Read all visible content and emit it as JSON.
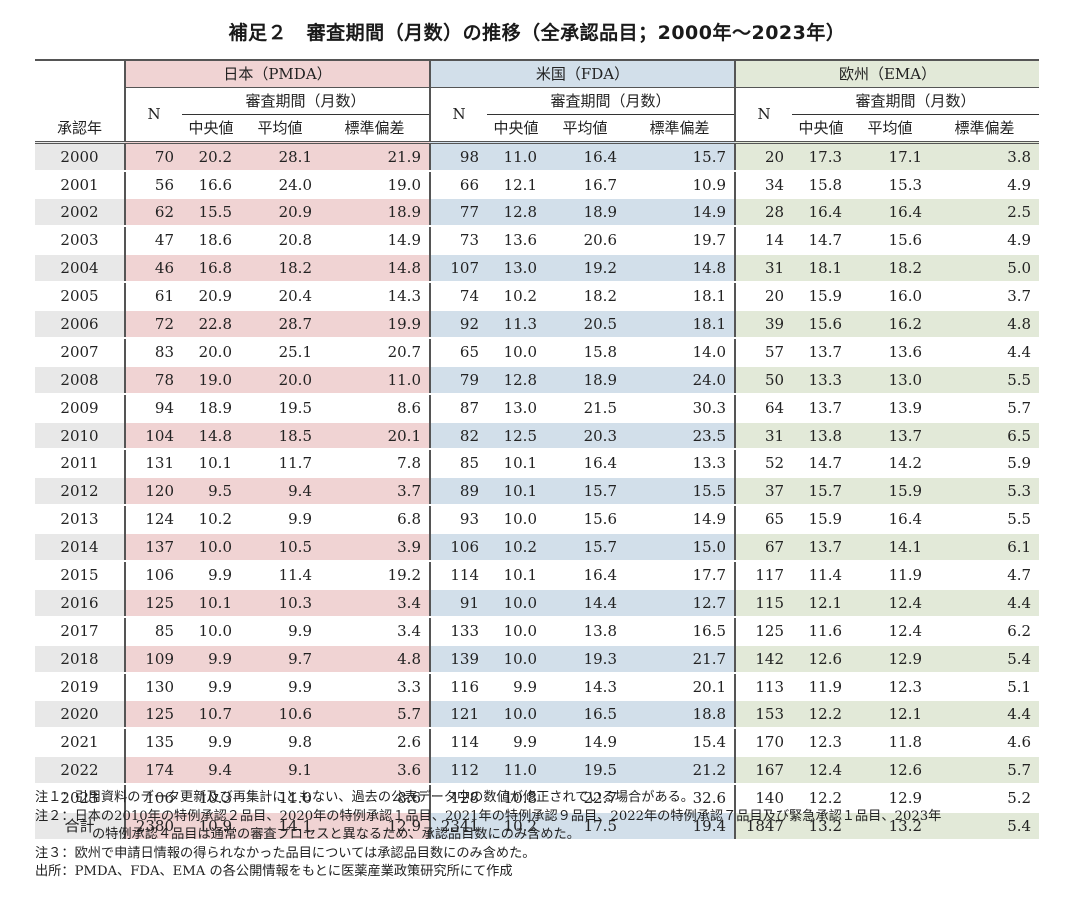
{
  "title": "補足２　審査期間（月数）の推移（全承認品目；2000年～2023年）",
  "header": {
    "year_col": "承認年",
    "n_label": "N",
    "period_label": "審査期間（月数）",
    "stat_labels": [
      "中央値",
      "平均値",
      "標準偏差"
    ],
    "regions": [
      {
        "key": "jp",
        "label": "日本（PMDA）",
        "color": "#f0d3d3"
      },
      {
        "key": "us",
        "label": "米国（FDA）",
        "color": "#d2dfea"
      },
      {
        "key": "eu",
        "label": "欧州（EMA）",
        "color": "#e2e9d8"
      }
    ]
  },
  "rows": [
    {
      "year": "2000",
      "jp": [
        "70",
        "20.2",
        "28.1",
        "21.9"
      ],
      "us": [
        "98",
        "11.0",
        "16.4",
        "15.7"
      ],
      "eu": [
        "20",
        "17.3",
        "17.1",
        "3.8"
      ]
    },
    {
      "year": "2001",
      "jp": [
        "56",
        "16.6",
        "24.0",
        "19.0"
      ],
      "us": [
        "66",
        "12.1",
        "16.7",
        "10.9"
      ],
      "eu": [
        "34",
        "15.8",
        "15.3",
        "4.9"
      ]
    },
    {
      "year": "2002",
      "jp": [
        "62",
        "15.5",
        "20.9",
        "18.9"
      ],
      "us": [
        "77",
        "12.8",
        "18.9",
        "14.9"
      ],
      "eu": [
        "28",
        "16.4",
        "16.4",
        "2.5"
      ]
    },
    {
      "year": "2003",
      "jp": [
        "47",
        "18.6",
        "20.8",
        "14.9"
      ],
      "us": [
        "73",
        "13.6",
        "20.6",
        "19.7"
      ],
      "eu": [
        "14",
        "14.7",
        "15.6",
        "4.9"
      ]
    },
    {
      "year": "2004",
      "jp": [
        "46",
        "16.8",
        "18.2",
        "14.8"
      ],
      "us": [
        "107",
        "13.0",
        "19.2",
        "14.8"
      ],
      "eu": [
        "31",
        "18.1",
        "18.2",
        "5.0"
      ]
    },
    {
      "year": "2005",
      "jp": [
        "61",
        "20.9",
        "20.4",
        "14.3"
      ],
      "us": [
        "74",
        "10.2",
        "18.2",
        "18.1"
      ],
      "eu": [
        "20",
        "15.9",
        "16.0",
        "3.7"
      ]
    },
    {
      "year": "2006",
      "jp": [
        "72",
        "22.8",
        "28.7",
        "19.9"
      ],
      "us": [
        "92",
        "11.3",
        "20.5",
        "18.1"
      ],
      "eu": [
        "39",
        "15.6",
        "16.2",
        "4.8"
      ]
    },
    {
      "year": "2007",
      "jp": [
        "83",
        "20.0",
        "25.1",
        "20.7"
      ],
      "us": [
        "65",
        "10.0",
        "15.8",
        "14.0"
      ],
      "eu": [
        "57",
        "13.7",
        "13.6",
        "4.4"
      ]
    },
    {
      "year": "2008",
      "jp": [
        "78",
        "19.0",
        "20.0",
        "11.0"
      ],
      "us": [
        "79",
        "12.8",
        "18.9",
        "24.0"
      ],
      "eu": [
        "50",
        "13.3",
        "13.0",
        "5.5"
      ]
    },
    {
      "year": "2009",
      "jp": [
        "94",
        "18.9",
        "19.5",
        "8.6"
      ],
      "us": [
        "87",
        "13.0",
        "21.5",
        "30.3"
      ],
      "eu": [
        "64",
        "13.7",
        "13.9",
        "5.7"
      ]
    },
    {
      "year": "2010",
      "jp": [
        "104",
        "14.8",
        "18.5",
        "20.1"
      ],
      "us": [
        "82",
        "12.5",
        "20.3",
        "23.5"
      ],
      "eu": [
        "31",
        "13.8",
        "13.7",
        "6.5"
      ]
    },
    {
      "year": "2011",
      "jp": [
        "131",
        "10.1",
        "11.7",
        "7.8"
      ],
      "us": [
        "85",
        "10.1",
        "16.4",
        "13.3"
      ],
      "eu": [
        "52",
        "14.7",
        "14.2",
        "5.9"
      ]
    },
    {
      "year": "2012",
      "jp": [
        "120",
        "9.5",
        "9.4",
        "3.7"
      ],
      "us": [
        "89",
        "10.1",
        "15.7",
        "15.5"
      ],
      "eu": [
        "37",
        "15.7",
        "15.9",
        "5.3"
      ]
    },
    {
      "year": "2013",
      "jp": [
        "124",
        "10.2",
        "9.9",
        "6.8"
      ],
      "us": [
        "93",
        "10.0",
        "15.6",
        "14.9"
      ],
      "eu": [
        "65",
        "15.9",
        "16.4",
        "5.5"
      ]
    },
    {
      "year": "2014",
      "jp": [
        "137",
        "10.0",
        "10.5",
        "3.9"
      ],
      "us": [
        "106",
        "10.2",
        "15.7",
        "15.0"
      ],
      "eu": [
        "67",
        "13.7",
        "14.1",
        "6.1"
      ]
    },
    {
      "year": "2015",
      "jp": [
        "106",
        "9.9",
        "11.4",
        "19.2"
      ],
      "us": [
        "114",
        "10.1",
        "16.4",
        "17.7"
      ],
      "eu": [
        "117",
        "11.4",
        "11.9",
        "4.7"
      ]
    },
    {
      "year": "2016",
      "jp": [
        "125",
        "10.1",
        "10.3",
        "3.4"
      ],
      "us": [
        "91",
        "10.0",
        "14.4",
        "12.7"
      ],
      "eu": [
        "115",
        "12.1",
        "12.4",
        "4.4"
      ]
    },
    {
      "year": "2017",
      "jp": [
        "85",
        "10.0",
        "9.9",
        "3.4"
      ],
      "us": [
        "133",
        "10.0",
        "13.8",
        "16.5"
      ],
      "eu": [
        "125",
        "11.6",
        "12.4",
        "6.2"
      ]
    },
    {
      "year": "2018",
      "jp": [
        "109",
        "9.9",
        "9.7",
        "4.8"
      ],
      "us": [
        "139",
        "10.0",
        "19.3",
        "21.7"
      ],
      "eu": [
        "142",
        "12.6",
        "12.9",
        "5.4"
      ]
    },
    {
      "year": "2019",
      "jp": [
        "130",
        "9.9",
        "9.9",
        "3.3"
      ],
      "us": [
        "116",
        "9.9",
        "14.3",
        "20.1"
      ],
      "eu": [
        "113",
        "11.9",
        "12.3",
        "5.1"
      ]
    },
    {
      "year": "2020",
      "jp": [
        "125",
        "10.7",
        "10.6",
        "5.7"
      ],
      "us": [
        "121",
        "10.0",
        "16.5",
        "18.8"
      ],
      "eu": [
        "153",
        "12.2",
        "12.1",
        "4.4"
      ]
    },
    {
      "year": "2021",
      "jp": [
        "135",
        "9.9",
        "9.8",
        "2.6"
      ],
      "us": [
        "114",
        "9.9",
        "14.9",
        "15.4"
      ],
      "eu": [
        "170",
        "12.3",
        "11.8",
        "4.6"
      ]
    },
    {
      "year": "2022",
      "jp": [
        "174",
        "9.4",
        "9.1",
        "3.6"
      ],
      "us": [
        "112",
        "11.0",
        "19.5",
        "21.2"
      ],
      "eu": [
        "167",
        "12.4",
        "12.6",
        "5.7"
      ]
    },
    {
      "year": "2023",
      "jp": [
        "106",
        "10.3",
        "11.0",
        "8.6"
      ],
      "us": [
        "128",
        "10.8",
        "22.7",
        "32.6"
      ],
      "eu": [
        "140",
        "12.2",
        "12.9",
        "5.2"
      ]
    },
    {
      "year": "合計",
      "jp": [
        "2380",
        "10.9",
        "14.1",
        "12.9"
      ],
      "us": [
        "2341",
        "10.2",
        "17.5",
        "19.4"
      ],
      "eu": [
        "1847",
        "13.2",
        "13.2",
        "5.4"
      ]
    }
  ],
  "notes": [
    {
      "head": "注１：",
      "lines": [
        "引用資料のデータ更新及び再集計にともない、過去の公表データ中の数値が修正されている場合がある。"
      ]
    },
    {
      "head": "注２：",
      "lines": [
        "日本の2010年の特例承認２品目、2020年の特例承認１品目、2021年の特例承認９品目、2022年の特例承認７品目及び緊急承認１品目、2023年",
        "の特例承認４品目は通常の審査プロセスと異なるため、承認品目数にのみ含めた。"
      ]
    },
    {
      "head": "注３：",
      "lines": [
        "欧州で申請日情報の得られなかった品目については承認品目数にのみ含めた。"
      ]
    },
    {
      "head": "出所：",
      "lines": [
        "PMDA、FDA、EMA の各公開情報をもとに医薬産業政策研究所にて作成"
      ]
    }
  ]
}
